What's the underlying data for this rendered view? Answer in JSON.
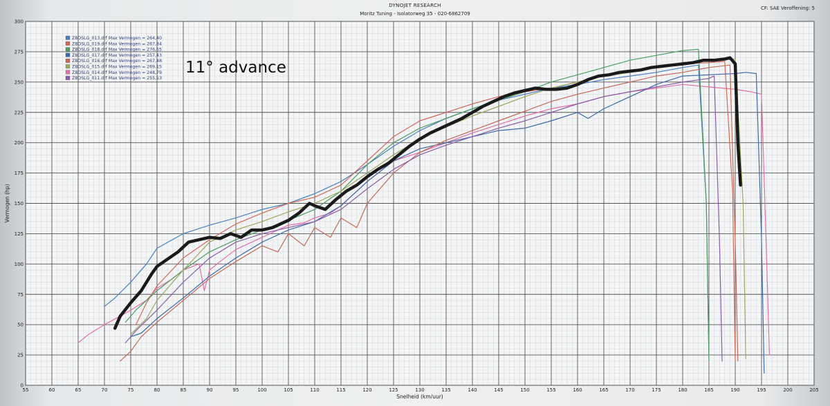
{
  "header": {
    "title": "DYNOJET RESEARCH",
    "subtitle": "Moritz Tuning - Isolatorweg 35 - 020-6862709",
    "cf_info": "CF: SAE  Veroffening: 5"
  },
  "annotation": "11° advance",
  "chart_data": {
    "type": "line",
    "title": "",
    "xlabel": "Snelheid (km/uur)",
    "ylabel": "Vermogen (hp)",
    "xlim": [
      55,
      205
    ],
    "ylim": [
      0,
      300
    ],
    "x_ticks": [
      55,
      60,
      65,
      70,
      75,
      80,
      85,
      90,
      95,
      100,
      105,
      110,
      115,
      120,
      125,
      130,
      135,
      140,
      145,
      150,
      155,
      160,
      165,
      170,
      175,
      180,
      185,
      190,
      195,
      200,
      205
    ],
    "y_ticks": [
      0,
      25,
      50,
      75,
      100,
      125,
      150,
      175,
      200,
      225,
      250,
      275,
      300
    ],
    "grid": true,
    "legend_position": "top-left",
    "legend": [
      {
        "label": "ZBOSLG_013.drf Max Vermogen = 264,40",
        "color": "#4a7fc0"
      },
      {
        "label": "ZBOSLG_019.drf Max Vermogen = 267,84",
        "color": "#d06a5a"
      },
      {
        "label": "ZBOSLG_018.drf Max Vermogen = 276,65",
        "color": "#4f9c60"
      },
      {
        "label": "ZBOSLG_017.drf Max Vermogen = 257,43",
        "color": "#3f68a8"
      },
      {
        "label": "ZBOSLG_016.drf Max Vermogen = 267,48",
        "color": "#c46a58"
      },
      {
        "label": "ZBOSLG_015.drf Max Vermogen = 269,15",
        "color": "#9aa860"
      },
      {
        "label": "ZBOSLG_014.drf Max Vermogen = 248,79",
        "color": "#e070a8"
      },
      {
        "label": "ZBOSLG_011.drf Max Vermogen = 255,53",
        "color": "#8a5ca8"
      }
    ],
    "series": [
      {
        "color": "#e070a8",
        "width": 1.2,
        "x": [
          65,
          67,
          70,
          73,
          75,
          78,
          80,
          83,
          85,
          88,
          89,
          90,
          92,
          95,
          98,
          100,
          103,
          105,
          108,
          110,
          113,
          115,
          120,
          125,
          130,
          135,
          140,
          145,
          150,
          155,
          160,
          165,
          170,
          175,
          180,
          185,
          190,
          193,
          195,
          196,
          196.5
        ],
        "y": [
          35,
          42,
          50,
          57,
          62,
          70,
          80,
          88,
          95,
          100,
          78,
          95,
          102,
          112,
          118,
          122,
          128,
          132,
          134,
          138,
          142,
          148,
          168,
          185,
          192,
          200,
          208,
          215,
          222,
          228,
          232,
          238,
          242,
          245,
          248,
          246,
          244,
          242,
          240,
          100,
          25
        ]
      },
      {
        "color": "#4a7fc0",
        "width": 1.2,
        "x": [
          70,
          72,
          75,
          78,
          80,
          85,
          90,
          95,
          100,
          105,
          110,
          115,
          120,
          125,
          130,
          135,
          140,
          145,
          150,
          155,
          160,
          165,
          170,
          175,
          180,
          183,
          184.5,
          185
        ],
        "y": [
          65,
          72,
          85,
          100,
          113,
          125,
          132,
          138,
          145,
          150,
          158,
          168,
          182,
          197,
          210,
          220,
          228,
          235,
          240,
          245,
          248,
          252,
          255,
          258,
          262,
          264,
          150,
          20
        ]
      },
      {
        "color": "#d06a5a",
        "width": 1.2,
        "x": [
          76,
          78,
          80,
          85,
          90,
          95,
          100,
          105,
          110,
          115,
          120,
          125,
          130,
          135,
          140,
          145,
          150,
          155,
          160,
          165,
          170,
          175,
          180,
          185,
          188,
          189.5,
          190
        ],
        "y": [
          50,
          68,
          82,
          105,
          120,
          133,
          142,
          150,
          155,
          165,
          185,
          205,
          218,
          225,
          232,
          238,
          242,
          245,
          250,
          255,
          258,
          262,
          265,
          266,
          267,
          160,
          20
        ]
      },
      {
        "color": "#4f9c60",
        "width": 1.2,
        "x": [
          74,
          76,
          80,
          85,
          90,
          95,
          100,
          105,
          110,
          115,
          120,
          125,
          130,
          135,
          140,
          145,
          150,
          155,
          160,
          165,
          170,
          175,
          180,
          183,
          184.5,
          185
        ],
        "y": [
          52,
          62,
          78,
          95,
          110,
          120,
          128,
          136,
          145,
          160,
          182,
          200,
          212,
          220,
          228,
          235,
          242,
          250,
          256,
          262,
          268,
          272,
          276,
          277,
          150,
          20
        ]
      },
      {
        "color": "#3f68a8",
        "width": 1.2,
        "x": [
          75,
          77,
          80,
          85,
          90,
          95,
          100,
          105,
          110,
          115,
          120,
          125,
          130,
          135,
          140,
          145,
          150,
          155,
          160,
          162,
          165,
          170,
          175,
          180,
          185,
          190,
          192,
          194,
          195,
          195.5
        ],
        "y": [
          40,
          43,
          55,
          72,
          90,
          105,
          118,
          128,
          135,
          148,
          168,
          185,
          195,
          200,
          205,
          210,
          212,
          218,
          225,
          220,
          228,
          238,
          248,
          255,
          256,
          257,
          258,
          257,
          120,
          10
        ]
      },
      {
        "color": "#c46a58",
        "width": 1.2,
        "x": [
          73,
          75,
          77,
          80,
          85,
          90,
          95,
          100,
          103,
          105,
          108,
          110,
          113,
          115,
          118,
          120,
          125,
          130,
          135,
          140,
          145,
          150,
          155,
          160,
          165,
          170,
          175,
          180,
          185,
          189,
          190,
          190.5
        ],
        "y": [
          20,
          28,
          40,
          52,
          70,
          88,
          102,
          115,
          110,
          125,
          115,
          130,
          122,
          138,
          130,
          150,
          175,
          192,
          202,
          210,
          218,
          226,
          234,
          240,
          245,
          250,
          255,
          258,
          262,
          264,
          120,
          20
        ]
      },
      {
        "color": "#9aa860",
        "width": 1.2,
        "x": [
          75,
          78,
          80,
          85,
          90,
          95,
          100,
          105,
          110,
          115,
          120,
          125,
          130,
          135,
          140,
          145,
          150,
          155,
          160,
          165,
          170,
          175,
          180,
          185,
          190,
          191.5,
          192
        ],
        "y": [
          42,
          55,
          70,
          95,
          118,
          128,
          135,
          143,
          150,
          160,
          175,
          190,
          203,
          213,
          222,
          230,
          238,
          245,
          250,
          255,
          258,
          262,
          266,
          268,
          269,
          150,
          22
        ]
      },
      {
        "color": "#8a5ca8",
        "width": 1.2,
        "x": [
          74,
          76,
          80,
          85,
          90,
          95,
          100,
          105,
          110,
          115,
          120,
          125,
          130,
          135,
          140,
          145,
          150,
          155,
          160,
          165,
          170,
          175,
          180,
          185,
          186,
          187,
          187.5
        ],
        "y": [
          35,
          45,
          62,
          85,
          105,
          118,
          125,
          130,
          135,
          145,
          162,
          178,
          190,
          198,
          205,
          212,
          218,
          225,
          232,
          238,
          242,
          246,
          250,
          253,
          255,
          120,
          20
        ]
      },
      {
        "color": "#1a1a1a",
        "width": 4.5,
        "x": [
          72,
          73,
          75,
          77,
          79,
          80,
          82,
          84,
          86,
          88,
          90,
          92,
          94,
          96,
          98,
          100,
          102,
          104,
          105,
          107,
          109,
          110,
          112,
          114,
          116,
          118,
          120,
          122,
          124,
          126,
          128,
          130,
          132,
          134,
          136,
          138,
          140,
          142,
          144,
          146,
          148,
          150,
          152,
          154,
          156,
          158,
          160,
          162,
          164,
          166,
          168,
          170,
          172,
          174,
          176,
          178,
          180,
          182,
          184,
          186,
          188,
          189,
          190,
          190.5,
          191
        ],
        "y": [
          47,
          57,
          68,
          78,
          92,
          98,
          104,
          110,
          118,
          120,
          122,
          121,
          125,
          122,
          128,
          128,
          130,
          134,
          136,
          142,
          150,
          148,
          145,
          153,
          160,
          165,
          172,
          178,
          183,
          190,
          197,
          203,
          208,
          212,
          216,
          220,
          225,
          230,
          234,
          238,
          241,
          243,
          245,
          244,
          244,
          245,
          248,
          252,
          255,
          256,
          258,
          259,
          260,
          262,
          263,
          264,
          265,
          266,
          268,
          268,
          269,
          270,
          265,
          200,
          165
        ]
      }
    ]
  }
}
